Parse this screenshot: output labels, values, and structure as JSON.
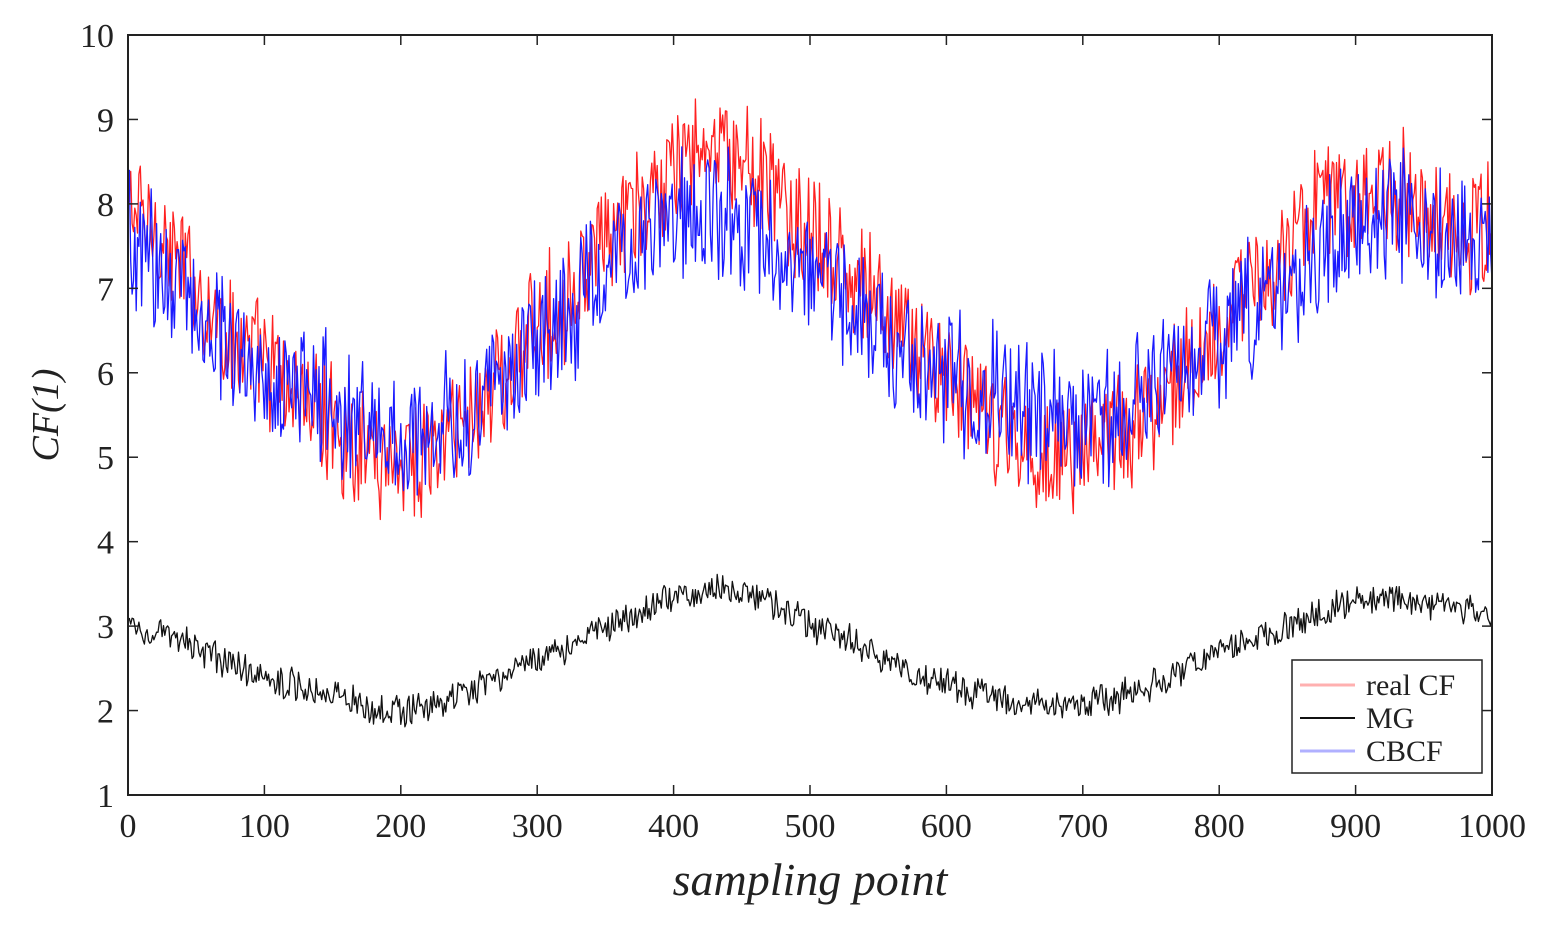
{
  "chart_data": {
    "type": "line",
    "title": "",
    "xlabel": "sampling point",
    "ylabel": "CF(1)",
    "xlim": [
      0,
      1000
    ],
    "ylim": [
      1,
      10
    ],
    "xticks": [
      "0",
      "100",
      "200",
      "300",
      "400",
      "500",
      "600",
      "700",
      "800",
      "900",
      "1000"
    ],
    "yticks": [
      "1",
      "2",
      "3",
      "4",
      "5",
      "6",
      "7",
      "8",
      "9",
      "10"
    ],
    "grid": false,
    "legend_position": "bottom-right",
    "series": [
      {
        "name": "real CF",
        "color": "#ff2020",
        "legend_color": "#ffb0b0",
        "x": [
          0,
          25,
          50,
          75,
          100,
          125,
          150,
          175,
          200,
          225,
          250,
          275,
          300,
          325,
          350,
          375,
          400,
          425,
          450,
          475,
          500,
          525,
          550,
          575,
          600,
          625,
          650,
          675,
          700,
          725,
          750,
          775,
          800,
          825,
          850,
          875,
          900,
          925,
          950,
          975,
          1000
        ],
        "values": [
          8.0,
          7.6,
          7.0,
          6.4,
          6.1,
          5.7,
          5.4,
          5.1,
          5.0,
          5.1,
          5.5,
          6.0,
          6.5,
          7.0,
          7.5,
          7.9,
          8.4,
          8.6,
          8.5,
          8.1,
          7.6,
          7.2,
          6.8,
          6.4,
          6.0,
          5.5,
          5.2,
          5.0,
          5.1,
          5.3,
          5.6,
          6.0,
          6.6,
          7.0,
          7.4,
          8.0,
          8.2,
          8.2,
          8.0,
          7.7,
          7.7
        ],
        "noise_amplitude": 0.85
      },
      {
        "name": "MG",
        "color": "#111111",
        "legend_color": "#111111",
        "x": [
          0,
          25,
          50,
          75,
          100,
          125,
          150,
          175,
          200,
          225,
          250,
          275,
          300,
          325,
          350,
          375,
          400,
          425,
          450,
          475,
          500,
          525,
          550,
          575,
          600,
          625,
          650,
          675,
          700,
          725,
          750,
          775,
          800,
          825,
          850,
          875,
          900,
          925,
          950,
          975,
          1000
        ],
        "values": [
          3.0,
          2.9,
          2.75,
          2.55,
          2.4,
          2.3,
          2.2,
          2.05,
          2.0,
          2.05,
          2.2,
          2.4,
          2.6,
          2.8,
          3.0,
          3.15,
          3.35,
          3.45,
          3.4,
          3.25,
          3.0,
          2.85,
          2.65,
          2.45,
          2.3,
          2.2,
          2.1,
          2.05,
          2.05,
          2.15,
          2.3,
          2.5,
          2.7,
          2.85,
          3.0,
          3.15,
          3.3,
          3.35,
          3.3,
          3.2,
          3.2
        ],
        "noise_amplitude": 0.22
      },
      {
        "name": "CBCF",
        "color": "#1a1aff",
        "legend_color": "#b0b0ff",
        "x": [
          0,
          25,
          50,
          75,
          100,
          125,
          150,
          175,
          200,
          225,
          250,
          275,
          300,
          325,
          350,
          375,
          400,
          425,
          450,
          475,
          500,
          525,
          550,
          575,
          600,
          625,
          650,
          675,
          700,
          725,
          750,
          775,
          800,
          825,
          850,
          875,
          900,
          925,
          950,
          975,
          1000
        ],
        "values": [
          7.6,
          7.2,
          6.8,
          6.4,
          6.0,
          5.8,
          5.6,
          5.4,
          5.2,
          5.4,
          5.6,
          5.9,
          6.3,
          6.7,
          7.1,
          7.5,
          7.8,
          7.9,
          7.8,
          7.5,
          7.2,
          6.9,
          6.6,
          6.3,
          6.0,
          5.8,
          5.6,
          5.4,
          5.4,
          5.5,
          5.8,
          6.1,
          6.5,
          6.8,
          7.1,
          7.5,
          7.7,
          7.8,
          7.7,
          7.5,
          7.3
        ],
        "noise_amplitude": 0.95
      }
    ]
  }
}
